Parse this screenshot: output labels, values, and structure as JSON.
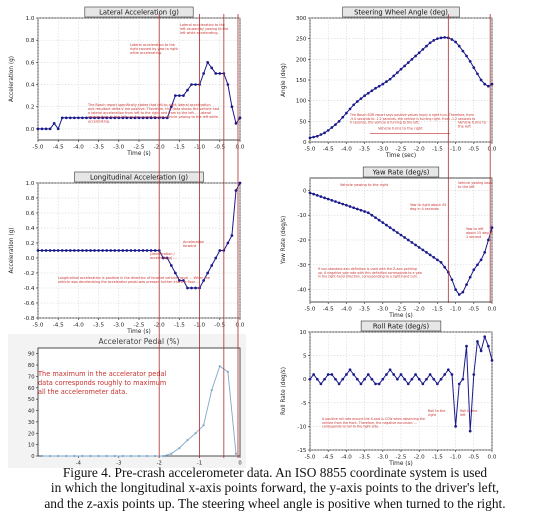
{
  "caption": {
    "line1": "Figure 4.  Pre-crash accelerometer data.  An ISO 8855 coordinate system is used",
    "line2": "in which the longitudinal x-axis points forward, the y-axis points to the driver's left,",
    "line3": "and the z-axis points up.  The steering wheel angle is positive when turned to the right."
  },
  "colors": {
    "series": "#1a1a8c",
    "annotation": "#c8332f",
    "marker_line": "#b02a2a",
    "accel_line": "#7fa8c8",
    "title_bg": "#e6e6e6"
  },
  "chart_data": [
    {
      "id": "lateral",
      "type": "line",
      "title": "Lateral Acceleration (g)",
      "xlabel": "Time (s)",
      "ylabel": "Acceleration (g)",
      "xlim": [
        -5.0,
        0.0
      ],
      "ylim": [
        -0.1,
        1.0
      ],
      "xticks": [
        -5.0,
        -4.5,
        -4.0,
        -3.5,
        -3.0,
        -2.5,
        -2.0,
        -1.5,
        -1.0,
        -0.5,
        0.0
      ],
      "yticks": [
        0.0,
        0.2,
        0.4,
        0.6,
        0.8,
        1.0
      ],
      "grid": true,
      "x": [
        -5.0,
        -4.9,
        -4.8,
        -4.7,
        -4.6,
        -4.5,
        -4.4,
        -4.3,
        -4.2,
        -4.1,
        -4.0,
        -3.9,
        -3.8,
        -3.7,
        -3.6,
        -3.5,
        -3.4,
        -3.3,
        -3.2,
        -3.1,
        -3.0,
        -2.9,
        -2.8,
        -2.7,
        -2.6,
        -2.5,
        -2.4,
        -2.3,
        -2.2,
        -2.1,
        -2.0,
        -1.9,
        -1.8,
        -1.7,
        -1.6,
        -1.5,
        -1.4,
        -1.3,
        -1.2,
        -1.1,
        -1.0,
        -0.9,
        -0.8,
        -0.7,
        -0.6,
        -0.5,
        -0.4,
        -0.3,
        -0.2,
        -0.1,
        0.0
      ],
      "y": [
        0.0,
        0.0,
        0.0,
        0.0,
        0.05,
        0.0,
        0.1,
        0.1,
        0.1,
        0.1,
        0.1,
        0.1,
        0.1,
        0.1,
        0.1,
        0.1,
        0.1,
        0.1,
        0.1,
        0.1,
        0.1,
        0.1,
        0.1,
        0.1,
        0.1,
        0.1,
        0.1,
        0.1,
        0.1,
        0.1,
        0.1,
        0.1,
        0.1,
        0.2,
        0.3,
        0.3,
        0.3,
        0.35,
        0.4,
        0.4,
        0.4,
        0.5,
        0.6,
        0.55,
        0.5,
        0.5,
        0.5,
        0.4,
        0.2,
        0.05,
        0.1
      ],
      "annotations": [
        "The Bosch report specifically states that left-to-right lateral acceleration and resultant delta-V are positive. Therefore, this data shows the vehicle had a lateral acceleration from left to the right and from to the left ... Lateral acceleration to the left can be caused by the vehicle yawing to the left while accelerating.",
        "Lateral acceleration to the right caused by yaw to right while accelerating.",
        "Lateral acceleration to the left caused by yawing to the left while accelerating."
      ]
    },
    {
      "id": "longitudinal",
      "type": "line",
      "title": "Longitudinal Acceleration (g)",
      "xlabel": "Time (s)",
      "ylabel": "Acceleration (g)",
      "xlim": [
        -5.0,
        0.0
      ],
      "ylim": [
        -0.8,
        1.0
      ],
      "xticks": [
        -5.0,
        -4.5,
        -4.0,
        -3.5,
        -3.0,
        -2.5,
        -2.0,
        -1.5,
        -1.0,
        -0.5,
        0.0
      ],
      "yticks": [
        -0.8,
        -0.6,
        -0.4,
        -0.2,
        0.0,
        0.2,
        0.4,
        0.6,
        0.8,
        1.0
      ],
      "grid": true,
      "x": [
        -5.0,
        -4.9,
        -4.8,
        -4.7,
        -4.6,
        -4.5,
        -4.4,
        -4.3,
        -4.2,
        -4.1,
        -4.0,
        -3.9,
        -3.8,
        -3.7,
        -3.6,
        -3.5,
        -3.4,
        -3.3,
        -3.2,
        -3.1,
        -3.0,
        -2.9,
        -2.8,
        -2.7,
        -2.6,
        -2.5,
        -2.4,
        -2.3,
        -2.2,
        -2.1,
        -2.0,
        -1.9,
        -1.8,
        -1.7,
        -1.6,
        -1.5,
        -1.4,
        -1.3,
        -1.2,
        -1.1,
        -1.0,
        -0.9,
        -0.8,
        -0.7,
        -0.6,
        -0.5,
        -0.4,
        -0.3,
        -0.2,
        -0.1,
        0.0
      ],
      "y": [
        0.1,
        0.1,
        0.1,
        0.1,
        0.1,
        0.1,
        0.1,
        0.1,
        0.1,
        0.1,
        0.1,
        0.1,
        0.1,
        0.1,
        0.1,
        0.1,
        0.1,
        0.1,
        0.1,
        0.1,
        0.1,
        0.1,
        0.1,
        0.1,
        0.1,
        0.1,
        0.1,
        0.1,
        0.1,
        0.1,
        0.1,
        0.0,
        0.0,
        -0.1,
        -0.2,
        -0.3,
        -0.3,
        -0.4,
        -0.4,
        -0.4,
        -0.4,
        -0.3,
        -0.2,
        -0.1,
        0.0,
        0.1,
        0.1,
        0.2,
        0.3,
        0.9,
        1.0
      ],
      "annotations": [
        "Longitudinal acceleration is positive in the direction of forward vehicle travel ... When the vehicle was decelerating the accelerator pedal was pressed further into the floor ...",
        "[deceleration / accelerating] ...",
        "Acceleration forward"
      ]
    },
    {
      "id": "pedal",
      "type": "line",
      "title": "Accelerator Pedal (%)",
      "xlim": [
        -5,
        0
      ],
      "ylim": [
        0,
        95
      ],
      "xticks": [
        -4,
        -3,
        -2,
        -1,
        0
      ],
      "yticks": [
        0,
        10,
        20,
        30,
        40,
        50,
        60,
        70,
        80,
        90
      ],
      "grid": false,
      "x": [
        -4.9,
        -4.7,
        -4.5,
        -4.3,
        -4.1,
        -3.9,
        -3.7,
        -3.5,
        -3.3,
        -3.1,
        -2.9,
        -2.7,
        -2.5,
        -2.3,
        -2.1,
        -1.9,
        -1.7,
        -1.5,
        -1.3,
        -1.1,
        -0.9,
        -0.7,
        -0.5,
        -0.3,
        -0.1
      ],
      "y": [
        0,
        0,
        0,
        0,
        0,
        0,
        0,
        0,
        0,
        0,
        0,
        0,
        0,
        0,
        0,
        0,
        2,
        7,
        14,
        20,
        27,
        58,
        79,
        74,
        2
      ],
      "annotation": [
        "The maximum in the accelerator pedal",
        "data corresponds roughly to maximum",
        "all the accelerometer data."
      ]
    },
    {
      "id": "steering",
      "type": "line",
      "title": "Steering Wheel Angle (deg)",
      "xlabel": "Time (sec)",
      "ylabel": "Angle (deg)",
      "xlim": [
        -5.0,
        0.0
      ],
      "ylim": [
        0,
        300
      ],
      "xticks": [
        -5.0,
        -4.5,
        -4.0,
        -3.5,
        -3.0,
        -2.5,
        -2.0,
        -1.5,
        -1.0,
        -0.5,
        0.0
      ],
      "yticks": [
        0,
        50,
        100,
        150,
        200,
        250,
        300
      ],
      "grid": true,
      "x": [
        -5.0,
        -4.9,
        -4.8,
        -4.7,
        -4.6,
        -4.5,
        -4.4,
        -4.3,
        -4.2,
        -4.1,
        -4.0,
        -3.9,
        -3.8,
        -3.7,
        -3.6,
        -3.5,
        -3.4,
        -3.3,
        -3.2,
        -3.1,
        -3.0,
        -2.9,
        -2.8,
        -2.7,
        -2.6,
        -2.5,
        -2.4,
        -2.3,
        -2.2,
        -2.1,
        -2.0,
        -1.9,
        -1.8,
        -1.7,
        -1.6,
        -1.5,
        -1.4,
        -1.3,
        -1.2,
        -1.1,
        -1.0,
        -0.9,
        -0.8,
        -0.7,
        -0.6,
        -0.5,
        -0.4,
        -0.3,
        -0.2,
        -0.1,
        0.0
      ],
      "y": [
        10,
        12,
        14,
        18,
        22,
        28,
        35,
        42,
        50,
        60,
        70,
        80,
        90,
        98,
        105,
        112,
        118,
        124,
        130,
        135,
        140,
        146,
        152,
        160,
        168,
        176,
        184,
        192,
        200,
        208,
        216,
        224,
        232,
        240,
        246,
        250,
        252,
        253,
        252,
        248,
        242,
        232,
        220,
        208,
        195,
        180,
        165,
        150,
        140,
        135,
        140
      ],
      "annotations": [
        "Vehicle turns to the right",
        "Vehicle turns to the left",
        "The Bosch EDR report says positive values imply a right turn. Therefore, from -5.0 seconds to -1.2 seconds, the vehicle is turning right. From -1.2 seconds to 0 seconds, the vehicle is turning to the left."
      ]
    },
    {
      "id": "yaw",
      "type": "line",
      "title": "Yaw Rate (deg/s)",
      "xlabel": "Time (s)",
      "ylabel": "Yaw Rate (deg/s)",
      "xlim": [
        -5.0,
        0.0
      ],
      "ylim": [
        -45,
        5
      ],
      "xticks": [
        -5.0,
        -4.5,
        -4.0,
        -3.5,
        -3.0,
        -2.5,
        -2.0,
        -1.5,
        -1.0,
        -0.5,
        0.0
      ],
      "yticks": [
        -40,
        -30,
        -20,
        -10,
        0
      ],
      "grid": true,
      "x": [
        -5.0,
        -4.9,
        -4.8,
        -4.7,
        -4.6,
        -4.5,
        -4.4,
        -4.3,
        -4.2,
        -4.1,
        -4.0,
        -3.9,
        -3.8,
        -3.7,
        -3.6,
        -3.5,
        -3.4,
        -3.3,
        -3.2,
        -3.1,
        -3.0,
        -2.9,
        -2.8,
        -2.7,
        -2.6,
        -2.5,
        -2.4,
        -2.3,
        -2.2,
        -2.1,
        -2.0,
        -1.9,
        -1.8,
        -1.7,
        -1.6,
        -1.5,
        -1.4,
        -1.3,
        -1.2,
        -1.1,
        -1.0,
        -0.9,
        -0.8,
        -0.7,
        -0.6,
        -0.5,
        -0.4,
        -0.3,
        -0.2,
        -0.1,
        0.0
      ],
      "y": [
        -1,
        -1.5,
        -2,
        -2.5,
        -3,
        -3.5,
        -4,
        -4.5,
        -5,
        -5.5,
        -6,
        -6.5,
        -7,
        -7.5,
        -8,
        -8.5,
        -9,
        -10,
        -11,
        -12,
        -13,
        -14,
        -15,
        -16,
        -17,
        -18,
        -19,
        -20,
        -21,
        -22,
        -23,
        -24,
        -25,
        -26,
        -27,
        -28,
        -29,
        -31,
        -33,
        -36,
        -40,
        -42,
        -41,
        -38,
        -35,
        -32,
        -30,
        -28,
        -25,
        -20,
        -15
      ],
      "annotations": [
        "Vehicle yawing to the right",
        "Vehicle yawing back to the left",
        "Yaw to right about 45 deg in 4 seconds",
        "Yaw to left about 15 deg in 1 second",
        "If non-standard axis definition is used with the Z-axis pointing up. A negative yaw rate with this definition corresponds to a yaw in the right-hand direction, corresponding to a right-hand turn."
      ]
    },
    {
      "id": "roll",
      "type": "line",
      "title": "Roll Rate (deg/s)",
      "xlabel": "Time (s)",
      "ylabel": "Roll Rate (deg/s)",
      "xlim": [
        -5.0,
        0.0
      ],
      "ylim": [
        -15,
        10
      ],
      "xticks": [
        -5.0,
        -4.5,
        -4.0,
        -3.5,
        -3.0,
        -2.5,
        -2.0,
        -1.5,
        -1.0,
        -0.5,
        0.0
      ],
      "yticks": [
        -15,
        -10,
        -5,
        0,
        5,
        10
      ],
      "grid": true,
      "x": [
        -5.0,
        -4.9,
        -4.8,
        -4.7,
        -4.6,
        -4.5,
        -4.4,
        -4.3,
        -4.2,
        -4.1,
        -4.0,
        -3.9,
        -3.8,
        -3.7,
        -3.6,
        -3.5,
        -3.4,
        -3.3,
        -3.2,
        -3.1,
        -3.0,
        -2.9,
        -2.8,
        -2.7,
        -2.6,
        -2.5,
        -2.4,
        -2.3,
        -2.2,
        -2.1,
        -2.0,
        -1.9,
        -1.8,
        -1.7,
        -1.6,
        -1.5,
        -1.4,
        -1.3,
        -1.2,
        -1.1,
        -1.0,
        -0.9,
        -0.8,
        -0.7,
        -0.6,
        -0.5,
        -0.4,
        -0.3,
        -0.2,
        -0.1,
        0.0
      ],
      "y": [
        0,
        1,
        0,
        -1,
        0,
        1,
        1,
        0,
        -1,
        0,
        1,
        2,
        1,
        0,
        -1,
        0,
        1,
        0,
        -1,
        -1,
        0,
        1,
        2,
        1,
        0,
        1,
        0,
        -1,
        0,
        1,
        0,
        -1,
        0,
        1,
        0,
        -1,
        0,
        1,
        2,
        1,
        -10,
        -1,
        0,
        7,
        -11,
        1,
        8,
        6,
        9,
        7,
        4
      ],
      "annotations": [
        "A positive roll rate around the X-axis is CCW when observing the vehicle from the front. Therefore, the negative excursion ... corresponds to roll to the right side.",
        "Roll to the right",
        "Roll to the left"
      ]
    }
  ]
}
